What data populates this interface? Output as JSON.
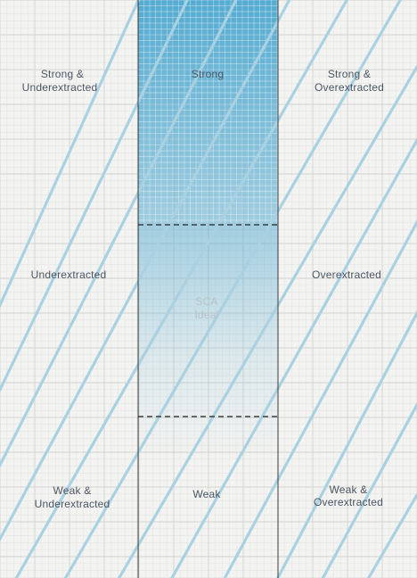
{
  "colors": {
    "background": "#f3f3f1",
    "grid_major": "#d3d3d0",
    "grid_minor": "#e5e5e2",
    "diagonal": "#a9d1e2",
    "accent": "#3a9fcc",
    "label": "#4b5663",
    "ideal_label": "#b8c2c9",
    "border": "#3b3b3b",
    "dash": "#222222"
  },
  "regions": {
    "top_left": {
      "line1": "Strong &",
      "line2": "Underextracted"
    },
    "top_center": {
      "line1": "Strong"
    },
    "top_right": {
      "line1": "Strong &",
      "line2": "Overextracted"
    },
    "mid_left": {
      "line1": "Underextracted"
    },
    "mid_center": {
      "line1": "SCA",
      "line2": "Ideal"
    },
    "mid_right": {
      "line1": "Overextracted"
    },
    "bottom_left": {
      "line1": "Weak &",
      "line2": "Underextracted"
    },
    "bottom_center": {
      "line1": "Weak"
    },
    "bottom_right": {
      "line1": "Weak &",
      "line2": "Overextracted"
    }
  }
}
